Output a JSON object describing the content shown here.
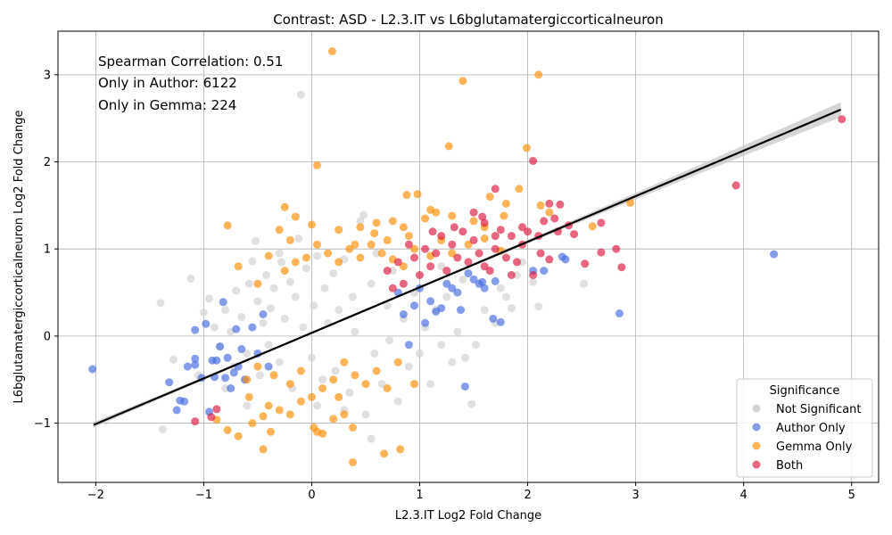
{
  "chart_data": {
    "type": "scatter",
    "title": "Contrast: ASD - L2.3.IT vs L6bglutamatergiccorticalneuron",
    "xlabel": "L2.3.IT Log2 Fold Change",
    "ylabel": "L6bglutamatergiccorticalneuron Log2 Fold Change",
    "xlim": [
      -2.35,
      5.25
    ],
    "ylim": [
      -1.68,
      3.5
    ],
    "xticks": [
      -2,
      -1,
      0,
      1,
      2,
      3,
      4,
      5
    ],
    "xtick_labels": [
      "−2",
      "−1",
      "0",
      "1",
      "2",
      "3",
      "4",
      "5"
    ],
    "yticks": [
      -1,
      0,
      1,
      2,
      3
    ],
    "ytick_labels": [
      "−1",
      "0",
      "1",
      "2",
      "3"
    ],
    "grid": true,
    "annotations": [
      "Spearman Correlation: 0.51",
      "Only in Author: 6122",
      "Only in Gemma: 224"
    ],
    "legend": {
      "title": "Significance",
      "placement": "lower-right",
      "entries": [
        "Not Significant",
        "Author Only",
        "Gemma Only",
        "Both"
      ]
    },
    "regression_line": {
      "x": [
        -2.02,
        4.9
      ],
      "y": [
        -1.02,
        2.6
      ]
    },
    "colors": {
      "Not Significant": "#d3d3d3",
      "Author Only": "#4169e1",
      "Gemma Only": "#ff8c00",
      "Both": "#dc143c",
      "regression": "#000000",
      "confidence_band": "#c8c8c8"
    },
    "series": [
      {
        "name": "Not Significant",
        "points": [
          [
            -1.4,
            0.38
          ],
          [
            -1.38,
            -1.07
          ],
          [
            -1.12,
            0.66
          ],
          [
            -1.28,
            -0.27
          ],
          [
            -1.0,
            0.27
          ],
          [
            -0.95,
            0.43
          ],
          [
            -0.9,
            0.1
          ],
          [
            -0.85,
            -0.12
          ],
          [
            -0.8,
            0.3
          ],
          [
            -0.75,
            0.05
          ],
          [
            -0.72,
            -0.35
          ],
          [
            -0.7,
            0.52
          ],
          [
            -0.65,
            0.22
          ],
          [
            -0.6,
            -0.2
          ],
          [
            -0.58,
            0.6
          ],
          [
            -0.55,
            0.86
          ],
          [
            -0.52,
            1.09
          ],
          [
            -0.5,
            0.4
          ],
          [
            -0.48,
            -0.45
          ],
          [
            -0.45,
            0.15
          ],
          [
            -0.42,
            0.7
          ],
          [
            -0.4,
            -0.1
          ],
          [
            -0.38,
            0.32
          ],
          [
            -0.35,
            0.55
          ],
          [
            -0.3,
            -0.3
          ],
          [
            -0.28,
            0.85
          ],
          [
            -0.25,
            0.2
          ],
          [
            -0.2,
            0.62
          ],
          [
            -0.18,
            -0.6
          ],
          [
            -0.15,
            0.45
          ],
          [
            -0.12,
            1.12
          ],
          [
            -0.1,
            2.77
          ],
          [
            -0.08,
            0.1
          ],
          [
            -0.05,
            0.78
          ],
          [
            0.0,
            -0.25
          ],
          [
            0.02,
            0.35
          ],
          [
            0.05,
            0.92
          ],
          [
            0.1,
            -0.5
          ],
          [
            0.12,
            0.55
          ],
          [
            0.15,
            0.15
          ],
          [
            0.2,
            0.72
          ],
          [
            0.22,
            -0.4
          ],
          [
            0.25,
            0.3
          ],
          [
            0.3,
            0.88
          ],
          [
            0.35,
            -0.65
          ],
          [
            0.38,
            0.45
          ],
          [
            0.4,
            0.05
          ],
          [
            0.45,
            1.32
          ],
          [
            0.48,
            1.39
          ],
          [
            0.5,
            -0.9
          ],
          [
            0.55,
            0.6
          ],
          [
            0.58,
            -0.2
          ],
          [
            0.6,
            0.95
          ],
          [
            0.65,
            -0.55
          ],
          [
            0.7,
            0.35
          ],
          [
            0.72,
            -0.05
          ],
          [
            0.75,
            0.75
          ],
          [
            0.8,
            -0.75
          ],
          [
            0.85,
            0.2
          ],
          [
            0.9,
            -0.35
          ],
          [
            0.95,
            0.5
          ],
          [
            1.0,
            -0.2
          ],
          [
            1.05,
            0.1
          ],
          [
            1.1,
            -0.55
          ],
          [
            1.15,
            0.3
          ],
          [
            1.2,
            -0.1
          ],
          [
            1.25,
            0.45
          ],
          [
            1.3,
            -0.3
          ],
          [
            1.35,
            0.05
          ],
          [
            1.42,
            -0.25
          ],
          [
            1.48,
            -0.78
          ],
          [
            1.52,
            -0.1
          ],
          [
            1.6,
            0.3
          ],
          [
            1.7,
            0.15
          ],
          [
            1.75,
            0.55
          ],
          [
            1.8,
            0.45
          ],
          [
            1.85,
            0.32
          ],
          [
            1.9,
            0.7
          ],
          [
            1.95,
            0.85
          ],
          [
            2.05,
            0.62
          ],
          [
            2.1,
            0.34
          ],
          [
            2.52,
            0.6
          ],
          [
            0.55,
            -1.18
          ],
          [
            -0.8,
            -0.6
          ],
          [
            -1.05,
            -0.45
          ],
          [
            -0.3,
            0.95
          ],
          [
            0.05,
            -0.8
          ],
          [
            0.3,
            -0.85
          ],
          [
            -0.6,
            -0.8
          ],
          [
            1.2,
            0.8
          ],
          [
            1.4,
            0.65
          ]
        ]
      },
      {
        "name": "Author Only",
        "points": [
          [
            -2.03,
            -0.38
          ],
          [
            -1.32,
            -0.53
          ],
          [
            -1.25,
            -0.85
          ],
          [
            -1.22,
            -0.74
          ],
          [
            -1.18,
            -0.75
          ],
          [
            -1.15,
            -0.35
          ],
          [
            -1.08,
            -0.33
          ],
          [
            -1.08,
            -0.26
          ],
          [
            -1.08,
            0.07
          ],
          [
            -1.02,
            -0.48
          ],
          [
            -0.98,
            0.14
          ],
          [
            -0.95,
            -0.87
          ],
          [
            -0.92,
            -0.28
          ],
          [
            -0.9,
            -0.47
          ],
          [
            -0.88,
            -0.28
          ],
          [
            -0.85,
            -0.12
          ],
          [
            -0.82,
            0.39
          ],
          [
            -0.8,
            -0.48
          ],
          [
            -0.78,
            -0.25
          ],
          [
            -0.75,
            -0.6
          ],
          [
            -0.72,
            -0.42
          ],
          [
            -0.7,
            0.08
          ],
          [
            -0.68,
            -0.35
          ],
          [
            -0.65,
            -0.15
          ],
          [
            -0.62,
            -0.5
          ],
          [
            -0.55,
            0.1
          ],
          [
            -0.5,
            -0.2
          ],
          [
            -0.45,
            0.25
          ],
          [
            -0.4,
            -0.35
          ],
          [
            0.8,
            0.5
          ],
          [
            0.85,
            0.25
          ],
          [
            0.9,
            -0.1
          ],
          [
            0.95,
            0.35
          ],
          [
            1.0,
            0.55
          ],
          [
            1.05,
            0.15
          ],
          [
            1.1,
            0.4
          ],
          [
            1.15,
            0.28
          ],
          [
            1.2,
            0.32
          ],
          [
            1.25,
            0.6
          ],
          [
            1.3,
            0.55
          ],
          [
            1.35,
            0.5
          ],
          [
            1.38,
            0.3
          ],
          [
            1.42,
            -0.58
          ],
          [
            1.45,
            0.72
          ],
          [
            1.5,
            0.65
          ],
          [
            1.55,
            0.6
          ],
          [
            1.58,
            0.62
          ],
          [
            1.6,
            0.55
          ],
          [
            1.68,
            0.2
          ],
          [
            1.7,
            0.63
          ],
          [
            1.75,
            0.16
          ],
          [
            2.05,
            0.75
          ],
          [
            2.15,
            0.75
          ],
          [
            2.32,
            0.91
          ],
          [
            2.35,
            0.88
          ],
          [
            2.85,
            0.26
          ],
          [
            4.28,
            0.94
          ]
        ]
      },
      {
        "name": "Gemma Only",
        "points": [
          [
            0.19,
            3.27
          ],
          [
            2.1,
            3.0
          ],
          [
            1.4,
            2.93
          ],
          [
            1.27,
            2.18
          ],
          [
            0.05,
            1.96
          ],
          [
            1.99,
            2.16
          ],
          [
            1.92,
            1.69
          ],
          [
            1.65,
            1.6
          ],
          [
            0.88,
            1.62
          ],
          [
            0.98,
            1.63
          ],
          [
            -0.78,
            1.27
          ],
          [
            -0.25,
            1.48
          ],
          [
            -0.15,
            1.37
          ],
          [
            -0.3,
            1.22
          ],
          [
            -0.2,
            1.1
          ],
          [
            0.0,
            1.28
          ],
          [
            0.25,
            1.22
          ],
          [
            0.45,
            1.25
          ],
          [
            0.6,
            1.3
          ],
          [
            0.75,
            1.32
          ],
          [
            0.85,
            1.25
          ],
          [
            1.05,
            1.35
          ],
          [
            1.1,
            1.45
          ],
          [
            1.15,
            1.42
          ],
          [
            1.3,
            1.38
          ],
          [
            1.5,
            1.32
          ],
          [
            1.6,
            1.25
          ],
          [
            1.78,
            1.38
          ],
          [
            1.8,
            1.52
          ],
          [
            2.12,
            1.5
          ],
          [
            2.2,
            1.42
          ],
          [
            2.6,
            1.26
          ],
          [
            2.95,
            1.53
          ],
          [
            -0.68,
            0.8
          ],
          [
            -0.5,
            0.6
          ],
          [
            -0.4,
            0.92
          ],
          [
            -0.25,
            0.75
          ],
          [
            -0.15,
            0.85
          ],
          [
            -0.05,
            0.9
          ],
          [
            0.05,
            1.05
          ],
          [
            0.15,
            0.95
          ],
          [
            0.25,
            0.85
          ],
          [
            0.35,
            1.0
          ],
          [
            0.45,
            0.9
          ],
          [
            0.55,
            1.05
          ],
          [
            0.65,
            0.95
          ],
          [
            0.75,
            0.88
          ],
          [
            0.85,
            0.8
          ],
          [
            0.95,
            1.0
          ],
          [
            1.1,
            0.92
          ],
          [
            1.2,
            1.1
          ],
          [
            1.3,
            0.95
          ],
          [
            1.45,
            1.05
          ],
          [
            1.6,
            1.12
          ],
          [
            1.75,
            0.98
          ],
          [
            -0.88,
            -0.96
          ],
          [
            -0.78,
            -1.08
          ],
          [
            -0.68,
            -1.15
          ],
          [
            -0.55,
            -1.0
          ],
          [
            -0.45,
            -0.92
          ],
          [
            -0.4,
            -0.8
          ],
          [
            -0.3,
            -0.85
          ],
          [
            -0.2,
            -0.9
          ],
          [
            -0.1,
            -0.75
          ],
          [
            0.0,
            -0.7
          ],
          [
            0.02,
            -1.05
          ],
          [
            0.05,
            -1.1
          ],
          [
            0.1,
            -1.12
          ],
          [
            0.2,
            -0.95
          ],
          [
            0.3,
            -0.9
          ],
          [
            0.38,
            -1.05
          ],
          [
            -0.45,
            -1.3
          ],
          [
            -0.38,
            -1.1
          ],
          [
            0.38,
            -1.45
          ],
          [
            0.67,
            -1.35
          ],
          [
            0.82,
            -1.3
          ],
          [
            -0.6,
            -0.5
          ],
          [
            -0.5,
            -0.35
          ],
          [
            -0.35,
            -0.45
          ],
          [
            -0.2,
            -0.55
          ],
          [
            -0.1,
            -0.4
          ],
          [
            0.1,
            -0.6
          ],
          [
            0.2,
            -0.5
          ],
          [
            0.3,
            -0.3
          ],
          [
            0.4,
            -0.45
          ],
          [
            0.5,
            -0.55
          ],
          [
            0.6,
            -0.4
          ],
          [
            0.7,
            -0.6
          ],
          [
            0.8,
            -0.3
          ],
          [
            0.95,
            -0.55
          ],
          [
            0.25,
            -0.7
          ],
          [
            -0.58,
            -0.7
          ],
          [
            0.58,
            1.18
          ],
          [
            0.7,
            1.1
          ],
          [
            0.9,
            1.15
          ],
          [
            0.4,
            1.05
          ]
        ]
      },
      {
        "name": "Both",
        "points": [
          [
            4.91,
            2.49
          ],
          [
            3.93,
            1.73
          ],
          [
            2.05,
            2.01
          ],
          [
            1.7,
            1.69
          ],
          [
            2.3,
            1.51
          ],
          [
            2.2,
            1.52
          ],
          [
            2.25,
            1.35
          ],
          [
            2.38,
            1.27
          ],
          [
            2.43,
            1.17
          ],
          [
            2.68,
            1.3
          ],
          [
            2.68,
            0.96
          ],
          [
            2.82,
            1.0
          ],
          [
            2.87,
            0.79
          ],
          [
            2.53,
            0.83
          ],
          [
            2.2,
            0.88
          ],
          [
            2.12,
            0.95
          ],
          [
            2.05,
            0.7
          ],
          [
            2.15,
            1.32
          ],
          [
            2.0,
            1.2
          ],
          [
            1.95,
            1.05
          ],
          [
            1.9,
            0.85
          ],
          [
            1.85,
            1.15
          ],
          [
            1.8,
            0.9
          ],
          [
            1.75,
            1.22
          ],
          [
            1.7,
            1.0
          ],
          [
            1.65,
            0.75
          ],
          [
            1.6,
            1.3
          ],
          [
            1.55,
            0.95
          ],
          [
            1.5,
            1.1
          ],
          [
            1.45,
            0.85
          ],
          [
            1.4,
            1.2
          ],
          [
            1.35,
            0.9
          ],
          [
            1.3,
            1.05
          ],
          [
            1.25,
            0.75
          ],
          [
            1.2,
            1.15
          ],
          [
            1.15,
            0.95
          ],
          [
            1.1,
            0.8
          ],
          [
            1.05,
            1.0
          ],
          [
            1.0,
            0.7
          ],
          [
            0.95,
            0.9
          ],
          [
            0.9,
            1.05
          ],
          [
            0.85,
            0.6
          ],
          [
            0.8,
            0.85
          ],
          [
            0.75,
            0.55
          ],
          [
            0.7,
            0.75
          ],
          [
            1.5,
            1.42
          ],
          [
            1.58,
            1.37
          ],
          [
            1.7,
            1.15
          ],
          [
            1.95,
            1.25
          ],
          [
            2.1,
            1.15
          ],
          [
            2.28,
            1.2
          ],
          [
            1.12,
            1.2
          ],
          [
            1.32,
            1.25
          ],
          [
            1.6,
            0.8
          ],
          [
            1.85,
            0.7
          ],
          [
            -1.08,
            -0.98
          ],
          [
            -0.93,
            -0.93
          ],
          [
            -0.88,
            -0.84
          ]
        ]
      }
    ]
  }
}
